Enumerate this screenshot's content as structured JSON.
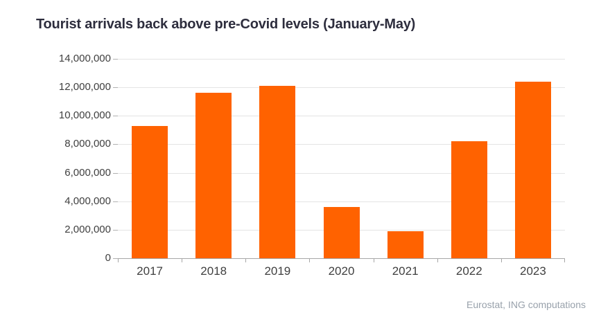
{
  "header": {
    "title": "Tourist arrivals back above pre-Covid levels (January-May)"
  },
  "chart_data": {
    "type": "bar",
    "title": "Tourist arrivals back above pre-Covid levels (January-May)",
    "categories": [
      "2017",
      "2018",
      "2019",
      "2020",
      "2021",
      "2022",
      "2023"
    ],
    "values": [
      9300000,
      11600000,
      12100000,
      3600000,
      1900000,
      8200000,
      12400000
    ],
    "xlabel": "",
    "ylabel": "",
    "ylim": [
      0,
      14000000
    ],
    "ytick_interval": 2000000,
    "ytick_labels": [
      "0",
      "2,000,000",
      "4,000,000",
      "6,000,000",
      "8,000,000",
      "10,000,000",
      "12,000,000",
      "14,000,000"
    ],
    "grid": true,
    "legend": false
  },
  "footer": {
    "source": "Eurostat, ING computations"
  },
  "colors": {
    "bar": "#FF6200",
    "gridline": "#e4e4e4",
    "axis": "#a6a6a6",
    "title_text": "#2d2d3d",
    "tick_text": "#3f3f3f",
    "source_text": "#98a1ab",
    "background": "#ffffff"
  }
}
